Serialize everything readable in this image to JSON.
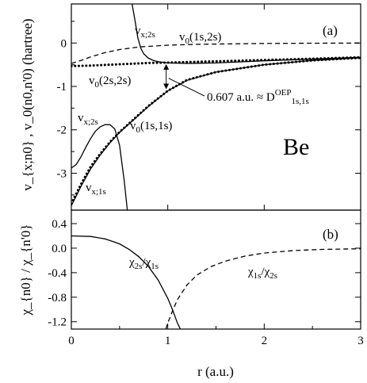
{
  "chart_data": [
    {
      "panel": "(a)",
      "type": "line",
      "xlabel": "",
      "ylabel": "v_{x;n0} , v_0(n0,n'0)  (hartree)",
      "xlim": [
        0,
        3
      ],
      "ylim": [
        -3.85,
        0.9
      ],
      "x_ticks": [
        0,
        1,
        2,
        3
      ],
      "y_ticks": [
        0,
        -1,
        -2,
        -3
      ],
      "y_tick_labels": [
        "0",
        "-1",
        "-2",
        "-3"
      ],
      "grid": false,
      "series": [
        {
          "name": "v_{x;2s}",
          "style": "solid",
          "x": [
            0.63,
            0.66,
            0.69,
            0.72,
            0.75,
            0.8,
            0.85,
            0.9,
            1.0,
            1.2,
            1.5,
            2.0,
            2.5,
            3.0
          ],
          "y": [
            0.9,
            0.52,
            0.12,
            -0.12,
            -0.25,
            -0.35,
            -0.4,
            -0.43,
            -0.46,
            -0.47,
            -0.46,
            -0.41,
            -0.37,
            -0.33
          ]
        },
        {
          "name": "v_0(1s,2s)",
          "style": "dashed",
          "x": [
            0,
            0.1,
            0.2,
            0.35,
            0.5,
            0.7,
            1.0,
            1.3,
            1.6,
            2.0,
            2.5,
            3.0
          ],
          "y": [
            -0.47,
            -0.4,
            -0.32,
            -0.22,
            -0.15,
            -0.09,
            -0.05,
            -0.03,
            -0.02,
            -0.01,
            -0.005,
            0
          ]
        },
        {
          "name": "v_0(2s,2s)",
          "style": "dotted",
          "x": [
            0,
            0.2,
            0.4,
            0.6,
            0.8,
            1.0,
            1.2,
            1.5,
            2.0,
            2.5,
            3.0
          ],
          "y": [
            -0.53,
            -0.52,
            -0.5,
            -0.48,
            -0.46,
            -0.45,
            -0.44,
            -0.42,
            -0.39,
            -0.36,
            -0.33
          ]
        },
        {
          "name": "v_0(1s,1s)",
          "style": "dotted",
          "x": [
            0,
            0.1,
            0.2,
            0.3,
            0.4,
            0.5,
            0.6,
            0.8,
            1.0,
            1.2,
            1.5,
            2.0,
            2.5,
            3.0
          ],
          "y": [
            -3.7,
            -3.25,
            -2.85,
            -2.55,
            -2.28,
            -2.05,
            -1.85,
            -1.45,
            -1.1,
            -0.85,
            -0.67,
            -0.5,
            -0.4,
            -0.34
          ]
        },
        {
          "name": "v_{x;2s}",
          "style": "solid",
          "x": [
            0,
            0.05,
            0.1,
            0.15,
            0.2,
            0.25,
            0.3,
            0.35,
            0.4,
            0.45,
            0.5,
            0.55,
            0.58
          ],
          "y": [
            -2.88,
            -2.8,
            -2.62,
            -2.4,
            -2.2,
            -2.03,
            -1.93,
            -1.88,
            -1.88,
            -1.98,
            -2.35,
            -3.2,
            -3.85
          ]
        },
        {
          "name": "v_{x;1s}",
          "style": "solid",
          "x": [
            0,
            0.1,
            0.2,
            0.3,
            0.4,
            0.5,
            0.6,
            0.8,
            1.0,
            1.2,
            1.5,
            2.0,
            2.5,
            3.0
          ],
          "y": [
            -3.75,
            -3.3,
            -2.9,
            -2.58,
            -2.3,
            -2.06,
            -1.86,
            -1.46,
            -1.1,
            -0.86,
            -0.67,
            -0.5,
            -0.4,
            -0.34
          ]
        }
      ],
      "labels": {
        "panel": "(a)",
        "vx2s_top": "v_{x;2s}",
        "v0_1s2s": "v_0(1s,2s)",
        "v0_2s2s": "v_0(2s,2s)",
        "vx2s_left": "v_{x;2s}",
        "v0_1s1s": "v_0(1s,1s)",
        "vx1s": "v_{x;1s}",
        "element": "Be",
        "gap": "0.607 a.u. ≈ D^{OEP}_{1s,1s}"
      },
      "gap_marker": {
        "x": 1.0,
        "y_from": -1.1,
        "y_to": -0.45,
        "value": 0.607
      }
    },
    {
      "panel": "(b)",
      "type": "line",
      "xlabel": "r  (a.u.)",
      "ylabel": "χ_{n0} / χ_{n'0}",
      "xlim": [
        0,
        3
      ],
      "ylim": [
        -1.32,
        0.62
      ],
      "x_ticks": [
        0,
        1,
        2,
        3
      ],
      "x_tick_labels": [
        "0",
        "1",
        "2",
        "3"
      ],
      "y_ticks": [
        0.4,
        0.0,
        -0.4,
        -0.8,
        -1.2
      ],
      "y_tick_labels": [
        "0.4",
        "0.0",
        "-0.4",
        "-0.8",
        "-1.2"
      ],
      "grid": false,
      "series": [
        {
          "name": "χ_{2s}/χ_{1s}",
          "style": "solid",
          "x": [
            0,
            0.2,
            0.35,
            0.5,
            0.6,
            0.7,
            0.8,
            0.9,
            1.0,
            1.05,
            1.1,
            1.13
          ],
          "y": [
            0.2,
            0.19,
            0.15,
            0.07,
            -0.02,
            -0.14,
            -0.3,
            -0.52,
            -0.82,
            -1.01,
            -1.22,
            -1.32
          ]
        },
        {
          "name": "χ_{1s}/χ_{2s}",
          "style": "dashed",
          "x": [
            0.98,
            1.0,
            1.05,
            1.1,
            1.2,
            1.3,
            1.45,
            1.6,
            1.8,
            2.0,
            2.3,
            2.6,
            3.0
          ],
          "y": [
            -1.32,
            -1.22,
            -1.02,
            -0.84,
            -0.6,
            -0.44,
            -0.3,
            -0.21,
            -0.13,
            -0.08,
            -0.04,
            -0.02,
            -0.01
          ]
        }
      ],
      "labels": {
        "panel": "(b)",
        "chi2s1s": "χ_{2s}/χ_{1s}",
        "chi1s2s": "χ_{1s}/χ_{2s}"
      }
    }
  ]
}
